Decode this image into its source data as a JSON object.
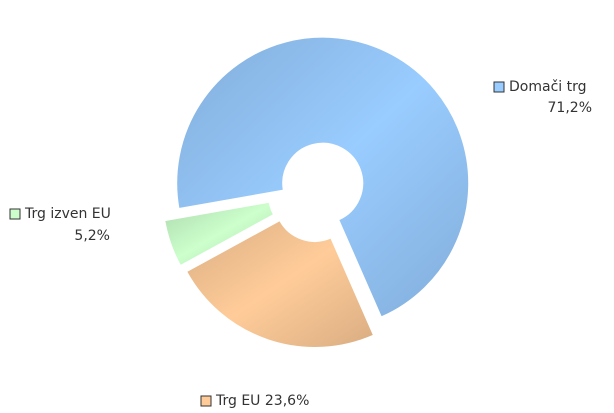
{
  "chart_data": {
    "type": "pie",
    "donut": true,
    "categories": [
      "Domači trg",
      "Trg EU",
      "Trg izven EU"
    ],
    "values": [
      71.2,
      23.6,
      5.2
    ],
    "value_labels": [
      "71,2%",
      "23,6%",
      "5,2%"
    ],
    "colors": [
      "#99ccff",
      "#ffcc99",
      "#ccffcc"
    ]
  }
}
